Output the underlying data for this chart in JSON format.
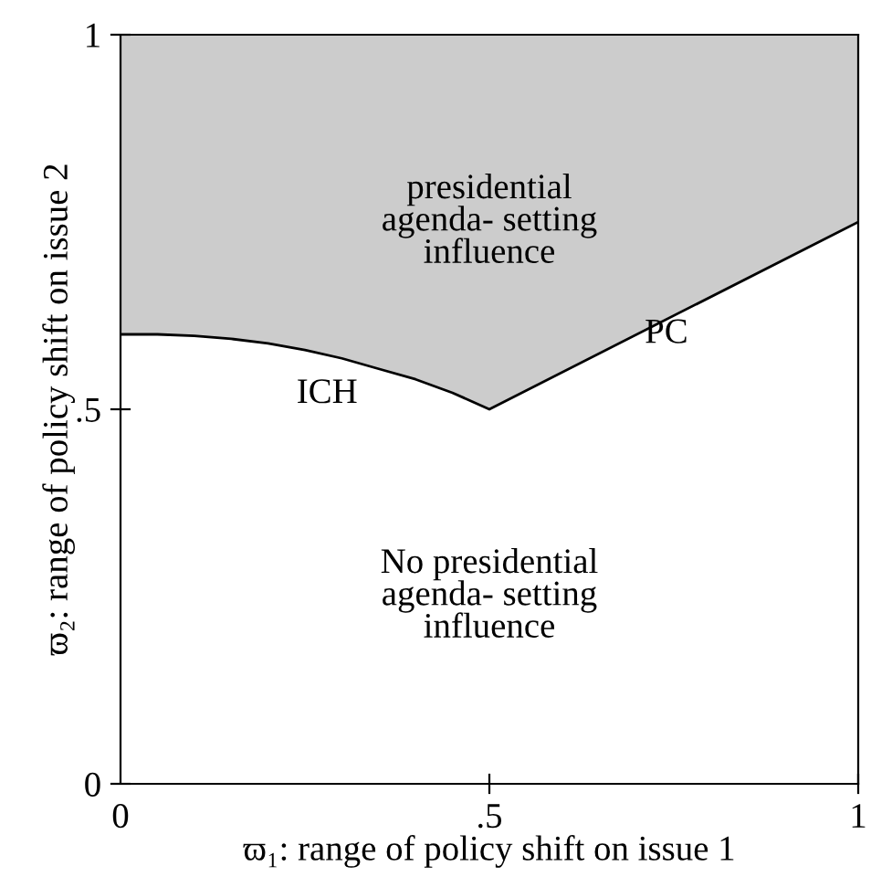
{
  "chart_data": {
    "type": "line",
    "xlabel": "ϖ₁: range of policy shift on issue 1",
    "ylabel": "ϖ₂: range of policy shift on issue 2",
    "x": [
      0,
      0.05,
      0.1,
      0.15,
      0.2,
      0.25,
      0.3,
      0.35,
      0.4,
      0.45,
      0.5,
      1
    ],
    "series": [
      {
        "color": "#000000",
        "values": [
          0.6,
          0.6,
          0.598,
          0.594,
          0.588,
          0.579,
          0.568,
          0.554,
          0.54,
          0.522,
          0.5,
          0.75
        ],
        "upper": [
          1,
          1,
          1,
          1,
          1,
          1,
          1,
          1,
          1,
          1,
          1,
          1
        ],
        "lower": [
          0.6,
          0.6,
          0.598,
          0.594,
          0.588,
          0.579,
          0.568,
          0.554,
          0.54,
          0.522,
          0.5,
          0.75
        ]
      }
    ],
    "xlim": [
      0,
      1
    ],
    "ylim": [
      0,
      1
    ],
    "xticks": [
      0,
      {
        "value": 0.5,
        "label": ".5"
      },
      1
    ],
    "yticks": [
      0,
      {
        "value": 0.5,
        "label": ".5"
      },
      1
    ],
    "grid": false,
    "legend": false,
    "marker": "none",
    "line_style": "solid",
    "annotations": [
      "presidential\nagenda- setting\ninfluence",
      "No presidential\nagenda- setting\ninfluence",
      "ICH",
      "PC"
    ]
  }
}
